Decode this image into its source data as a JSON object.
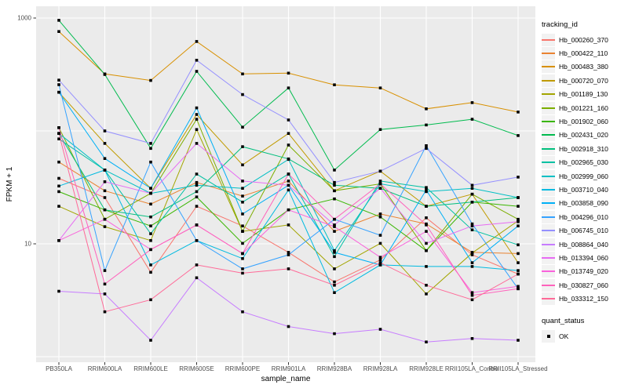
{
  "chart_data": {
    "type": "line",
    "title": "",
    "xlabel": "sample_name",
    "ylabel": "FPKM + 1",
    "y_scale": "log10",
    "ylim": [
      1,
      1000
    ],
    "y_ticks": [
      {
        "label": "10",
        "value": 10
      },
      {
        "label": "1000",
        "value": 1000
      }
    ],
    "grid": "white major gridlines on gray panel",
    "panel_bg": "#EBEBEB",
    "point_color": "#000000",
    "categories": [
      "PB350LA",
      "RRIM600LA",
      "RRIM600LE",
      "RRIM600SE",
      "RRIM600PE",
      "RRIM901LA",
      "RRIM928BA",
      "RRIM928LA",
      "RRIM928LE",
      "RRII105LA_Control",
      "RRII105LA_Stressed"
    ],
    "legend": {
      "title": "tracking_id",
      "position": "right"
    },
    "quant_status_legend": {
      "title": "quant_status",
      "items": [
        {
          "label": "OK",
          "shape": "filled-square",
          "color": "#000000"
        }
      ]
    },
    "series": [
      {
        "name": "Hb_000260_370",
        "color": "#F8766D",
        "values": [
          38,
          25.7,
          5.6,
          21.5,
          14.4,
          8.4,
          4.6,
          7.2,
          17,
          8.0,
          5.4
        ]
      },
      {
        "name": "Hb_000422_110",
        "color": "#EA8331",
        "values": [
          53,
          29.5,
          22.5,
          35,
          26.5,
          36,
          12.9,
          18.4,
          15,
          8.4,
          8.2
        ]
      },
      {
        "name": "Hb_000483_380",
        "color": "#D89000",
        "values": [
          760,
          320,
          280,
          620,
          320,
          325,
          256,
          240,
          157,
          178,
          147
        ]
      },
      {
        "name": "Hb_000720_070",
        "color": "#C09B00",
        "values": [
          220,
          77.5,
          31,
          140,
          50,
          95,
          29.5,
          44,
          21.5,
          27.5,
          6.8
        ]
      },
      {
        "name": "Hb_001189_130",
        "color": "#A3A500",
        "values": [
          21.5,
          14.2,
          10.7,
          103,
          12.9,
          14.7,
          6.0,
          10.1,
          3.6,
          8.3,
          16
        ]
      },
      {
        "name": "Hb_001221_160",
        "color": "#7CAE00",
        "values": [
          107,
          16.5,
          28,
          127,
          12.9,
          75,
          29.5,
          34,
          8.7,
          27.5,
          16.5
        ]
      },
      {
        "name": "Hb_001902_060",
        "color": "#39B600",
        "values": [
          29,
          20,
          14.4,
          26,
          10.1,
          20,
          25,
          17.3,
          8.7,
          23.4,
          21.5
        ]
      },
      {
        "name": "Hb_002431_020",
        "color": "#00BB4E",
        "values": [
          955,
          316,
          70,
          337,
          108,
          240,
          45,
          103,
          113,
          127,
          91
        ]
      },
      {
        "name": "Hb_002918_310",
        "color": "#00BF7D",
        "values": [
          95,
          20,
          17.3,
          29,
          72.5,
          56.5,
          33,
          31,
          21.5,
          23.4,
          25.7
        ]
      },
      {
        "name": "Hb_002965_030",
        "color": "#00C1A3",
        "values": [
          85,
          45,
          12.3,
          41.5,
          23.4,
          41.5,
          7.7,
          36,
          31.5,
          13.3,
          9.8
        ]
      },
      {
        "name": "Hb_002999_060",
        "color": "#00BFC4",
        "values": [
          95,
          45,
          28,
          33,
          31,
          56,
          8.7,
          34,
          29,
          31,
          25.7
        ]
      },
      {
        "name": "Hb_003710_040",
        "color": "#00BAE0",
        "values": [
          32.5,
          45,
          6.5,
          10.7,
          7.4,
          30,
          3.7,
          6.5,
          6.3,
          6.3,
          5.8
        ]
      },
      {
        "name": "Hb_003858_090",
        "color": "#00B0F6",
        "values": [
          220,
          57,
          31,
          160,
          18.4,
          33,
          8.4,
          6.5,
          30,
          6.8,
          14.4
        ]
      },
      {
        "name": "Hb_004296_010",
        "color": "#35A2FF",
        "values": [
          257,
          5.8,
          53,
          10.7,
          6.0,
          8.0,
          16.5,
          11.9,
          74,
          15,
          4.0
        ]
      },
      {
        "name": "Hb_006745_010",
        "color": "#9590FF",
        "values": [
          282,
          100,
          77.5,
          423,
          210,
          125,
          35,
          44,
          70,
          33,
          39
        ]
      },
      {
        "name": "Hb_008864_040",
        "color": "#C77CFF",
        "values": [
          3.8,
          3.6,
          1.4,
          5.0,
          2.5,
          1.85,
          1.6,
          1.75,
          1.35,
          1.45,
          1.4
        ]
      },
      {
        "name": "Hb_013394_060",
        "color": "#E76BF3",
        "values": [
          10.7,
          35.5,
          28,
          77.5,
          36,
          33,
          14.7,
          31,
          10.1,
          14.4,
          15.7
        ]
      },
      {
        "name": "Hb_013749_020",
        "color": "#FA62DB",
        "values": [
          10.7,
          16.5,
          8.9,
          14.7,
          8.2,
          20,
          14.2,
          7.6,
          12.9,
          3.7,
          4.2
        ]
      },
      {
        "name": "Hb_030827_060",
        "color": "#FF62BC",
        "values": [
          107,
          4.4,
          8.9,
          14.7,
          8.2,
          41.5,
          16.5,
          34,
          14.7,
          3.5,
          4.0
        ]
      },
      {
        "name": "Hb_033312_150",
        "color": "#FF6A98",
        "values": [
          95,
          2.5,
          3.2,
          6.5,
          5.5,
          6.0,
          4.3,
          6.8,
          4.3,
          3.2,
          5.4
        ]
      }
    ]
  }
}
